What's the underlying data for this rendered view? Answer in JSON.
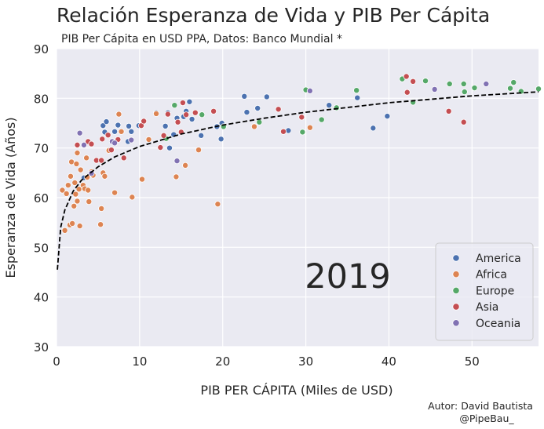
{
  "colors": {
    "background": "#eaeaf2",
    "grid": "#ffffff",
    "trend": "#000000",
    "text": "#262626",
    "America": "#4c72b0",
    "Africa": "#dd8452",
    "Europe": "#55a868",
    "Asia": "#c44e52",
    "Oceania": "#8172b3"
  },
  "chart_data": {
    "type": "scatter",
    "title": "Relación Esperanza de Vida y PIB Per Cápita",
    "subtitle": "PIB Per Cápita en USD PPA, Datos: Banco Mundial *",
    "xlabel": "PIB PER CÁPITA (Miles de USD)",
    "ylabel": "Esperanza de Vida (Años)",
    "xlim": [
      0,
      58
    ],
    "ylim": [
      30,
      90
    ],
    "xticks": [
      0,
      10,
      20,
      30,
      40,
      50
    ],
    "yticks": [
      30,
      40,
      50,
      60,
      70,
      80,
      90
    ],
    "year_label": "2019",
    "legend_position": "lower-right",
    "credit_author": "Autor: David Bautista",
    "credit_handle": "@PipeBau_",
    "trend_line": {
      "style": "dashed",
      "x": [
        0.1,
        0.5,
        1,
        2,
        3,
        5,
        7,
        10,
        15,
        20,
        25,
        30,
        40,
        50,
        58
      ],
      "y": [
        45.5,
        54.0,
        57.5,
        61.3,
        63.5,
        66.2,
        68.2,
        70.3,
        72.8,
        74.6,
        76.0,
        77.2,
        79.1,
        80.5,
        81.3
      ]
    },
    "series": [
      {
        "name": "America",
        "points": [
          [
            3.3,
            64.0
          ],
          [
            5.6,
            74.5
          ],
          [
            5.8,
            73.2
          ],
          [
            6.0,
            75.3
          ],
          [
            7.0,
            73.3
          ],
          [
            7.4,
            74.6
          ],
          [
            8.6,
            71.3
          ],
          [
            8.7,
            74.4
          ],
          [
            9.0,
            73.3
          ],
          [
            9.9,
            74.5
          ],
          [
            12.0,
            77.1
          ],
          [
            13.1,
            74.4
          ],
          [
            13.4,
            77.1
          ],
          [
            13.6,
            70.0
          ],
          [
            14.1,
            72.7
          ],
          [
            14.5,
            76.0
          ],
          [
            15.3,
            76.3
          ],
          [
            15.6,
            77.4
          ],
          [
            16.0,
            79.3
          ],
          [
            16.3,
            75.8
          ],
          [
            17.4,
            72.5
          ],
          [
            19.3,
            74.3
          ],
          [
            19.8,
            71.8
          ],
          [
            19.9,
            75.0
          ],
          [
            22.6,
            80.4
          ],
          [
            22.9,
            77.2
          ],
          [
            24.2,
            78.0
          ],
          [
            25.3,
            80.3
          ],
          [
            27.9,
            73.5
          ],
          [
            32.8,
            78.6
          ],
          [
            36.2,
            80.1
          ],
          [
            38.1,
            74.0
          ],
          [
            39.8,
            76.4
          ]
        ]
      },
      {
        "name": "Africa",
        "points": [
          [
            0.7,
            61.5
          ],
          [
            1.0,
            53.4
          ],
          [
            1.2,
            60.8
          ],
          [
            1.4,
            62.5
          ],
          [
            1.6,
            54.5
          ],
          [
            1.7,
            64.3
          ],
          [
            1.8,
            67.2
          ],
          [
            1.9,
            54.8
          ],
          [
            2.1,
            58.3
          ],
          [
            2.2,
            63.0
          ],
          [
            2.3,
            60.7
          ],
          [
            2.4,
            66.8
          ],
          [
            2.5,
            69.0
          ],
          [
            2.5,
            59.3
          ],
          [
            2.7,
            61.7
          ],
          [
            2.8,
            54.3
          ],
          [
            2.9,
            65.6
          ],
          [
            3.2,
            62.5
          ],
          [
            3.4,
            61.8
          ],
          [
            3.6,
            68.0
          ],
          [
            3.7,
            64.1
          ],
          [
            3.8,
            61.5
          ],
          [
            3.9,
            59.2
          ],
          [
            4.2,
            65.2
          ],
          [
            4.4,
            64.5
          ],
          [
            5.3,
            54.6
          ],
          [
            5.4,
            57.8
          ],
          [
            5.6,
            65.0
          ],
          [
            5.8,
            64.3
          ],
          [
            6.3,
            69.5
          ],
          [
            7.0,
            61.0
          ],
          [
            7.5,
            76.8
          ],
          [
            7.8,
            73.3
          ],
          [
            9.1,
            60.1
          ],
          [
            10.3,
            63.7
          ],
          [
            11.1,
            71.7
          ],
          [
            12.0,
            76.9
          ],
          [
            14.4,
            64.2
          ],
          [
            15.5,
            66.5
          ],
          [
            17.1,
            69.6
          ],
          [
            19.4,
            58.7
          ],
          [
            23.8,
            74.3
          ],
          [
            30.5,
            74.1
          ]
        ]
      },
      {
        "name": "Europe",
        "points": [
          [
            13.2,
            71.9
          ],
          [
            14.2,
            78.6
          ],
          [
            17.5,
            76.7
          ],
          [
            20.1,
            74.3
          ],
          [
            24.4,
            75.2
          ],
          [
            29.6,
            73.2
          ],
          [
            30.0,
            81.7
          ],
          [
            31.9,
            75.7
          ],
          [
            33.7,
            78.1
          ],
          [
            36.1,
            81.6
          ],
          [
            41.6,
            83.9
          ],
          [
            42.9,
            79.2
          ],
          [
            44.4,
            83.5
          ],
          [
            47.3,
            82.9
          ],
          [
            49.0,
            82.9
          ],
          [
            49.1,
            81.3
          ],
          [
            50.3,
            82.1
          ],
          [
            54.6,
            82.0
          ],
          [
            55.0,
            83.2
          ],
          [
            55.9,
            81.4
          ],
          [
            58.0,
            81.9
          ]
        ]
      },
      {
        "name": "Asia",
        "points": [
          [
            2.5,
            70.6
          ],
          [
            3.8,
            71.3
          ],
          [
            4.2,
            70.8
          ],
          [
            4.8,
            67.5
          ],
          [
            5.4,
            67.5
          ],
          [
            5.5,
            71.8
          ],
          [
            6.2,
            72.6
          ],
          [
            6.6,
            69.6
          ],
          [
            7.4,
            71.7
          ],
          [
            8.1,
            68.0
          ],
          [
            10.2,
            74.5
          ],
          [
            10.5,
            75.4
          ],
          [
            12.5,
            70.1
          ],
          [
            12.9,
            72.5
          ],
          [
            13.4,
            76.8
          ],
          [
            14.6,
            75.2
          ],
          [
            15.0,
            73.2
          ],
          [
            15.2,
            79.1
          ],
          [
            15.6,
            76.7
          ],
          [
            16.7,
            77.1
          ],
          [
            18.9,
            77.4
          ],
          [
            26.7,
            77.8
          ],
          [
            27.3,
            73.3
          ],
          [
            29.5,
            76.2
          ],
          [
            42.1,
            84.4
          ],
          [
            42.2,
            81.2
          ],
          [
            42.9,
            83.4
          ],
          [
            47.2,
            77.4
          ],
          [
            49.0,
            75.2
          ]
        ]
      },
      {
        "name": "Oceania",
        "points": [
          [
            2.8,
            73.0
          ],
          [
            3.3,
            70.6
          ],
          [
            4.2,
            64.9
          ],
          [
            6.7,
            71.3
          ],
          [
            7.0,
            71.0
          ],
          [
            9.0,
            71.6
          ],
          [
            14.5,
            67.4
          ],
          [
            30.5,
            81.5
          ],
          [
            45.5,
            81.8
          ],
          [
            51.7,
            82.9
          ]
        ]
      }
    ]
  }
}
